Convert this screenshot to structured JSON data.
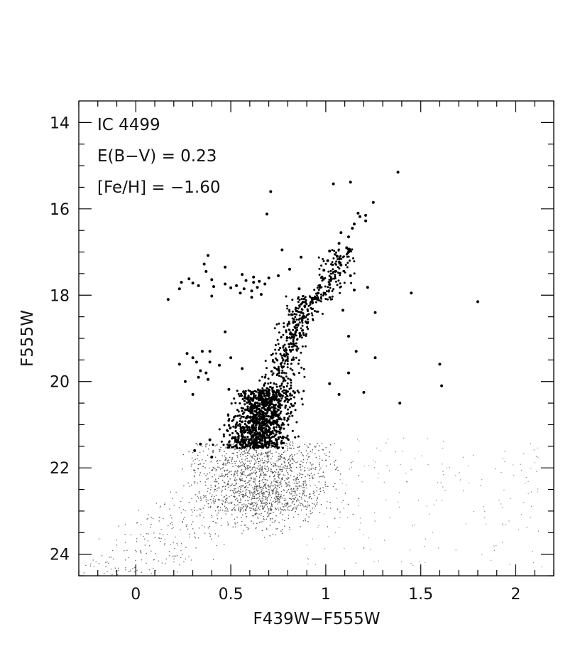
{
  "chart_data": {
    "type": "scatter",
    "title": "",
    "xlabel": "F439W−F555W",
    "ylabel": "F555W",
    "xlim": [
      -0.3,
      2.2
    ],
    "ylim": [
      24.5,
      13.5
    ],
    "y_inverted": true,
    "grid": false,
    "xticks": [
      0,
      0.5,
      1,
      1.5,
      2
    ],
    "xtick_labels": [
      "0",
      "0.5",
      "1",
      "1.5",
      "2"
    ],
    "yticks": [
      14,
      16,
      18,
      20,
      22,
      24
    ],
    "ytick_labels": [
      "14",
      "16",
      "18",
      "20",
      "22",
      "24"
    ],
    "annotations": [
      "IC 4499",
      "E(B−V) = 0.23",
      "[Fe/H] = −1.60"
    ],
    "series": [
      {
        "points": [
          [
            1.38,
            15.15
          ],
          [
            1.04,
            15.42
          ],
          [
            1.13,
            15.38
          ],
          [
            0.71,
            15.6
          ],
          [
            1.25,
            15.85
          ],
          [
            0.69,
            16.12
          ],
          [
            1.17,
            16.1
          ],
          [
            1.18,
            16.18
          ],
          [
            1.21,
            16.28
          ],
          [
            1.15,
            16.35
          ],
          [
            1.14,
            16.45
          ],
          [
            1.08,
            16.55
          ],
          [
            1.12,
            16.65
          ],
          [
            1.07,
            16.8
          ],
          [
            1.11,
            16.9
          ],
          [
            0.77,
            16.95
          ],
          [
            1.02,
            16.98
          ],
          [
            1.06,
            17.1
          ],
          [
            0.38,
            17.08
          ],
          [
            0.87,
            17.12
          ],
          [
            1.01,
            17.2
          ],
          [
            0.36,
            17.28
          ],
          [
            1.08,
            17.3
          ],
          [
            0.47,
            17.35
          ],
          [
            0.99,
            17.42
          ],
          [
            0.37,
            17.45
          ],
          [
            0.81,
            17.4
          ],
          [
            1.05,
            17.45
          ],
          [
            0.56,
            17.52
          ],
          [
            0.62,
            17.58
          ],
          [
            0.75,
            17.55
          ],
          [
            0.98,
            17.58
          ],
          [
            0.28,
            17.62
          ],
          [
            0.4,
            17.64
          ],
          [
            0.58,
            17.66
          ],
          [
            0.65,
            17.68
          ],
          [
            0.7,
            17.6
          ],
          [
            0.24,
            17.7
          ],
          [
            0.3,
            17.72
          ],
          [
            0.47,
            17.74
          ],
          [
            0.53,
            17.78
          ],
          [
            0.62,
            17.7
          ],
          [
            0.68,
            17.74
          ],
          [
            0.33,
            17.78
          ],
          [
            0.41,
            17.8
          ],
          [
            0.5,
            17.83
          ],
          [
            0.57,
            17.85
          ],
          [
            0.64,
            17.82
          ],
          [
            1.02,
            17.75
          ],
          [
            0.23,
            17.85
          ],
          [
            0.61,
            17.9
          ],
          [
            0.86,
            17.85
          ],
          [
            0.97,
            17.82
          ],
          [
            1.22,
            17.82
          ],
          [
            1.15,
            17.88
          ],
          [
            0.55,
            17.95
          ],
          [
            0.66,
            17.98
          ],
          [
            0.96,
            17.95
          ],
          [
            1.45,
            17.95
          ],
          [
            0.4,
            18.02
          ],
          [
            0.61,
            18.05
          ],
          [
            0.93,
            18.1
          ],
          [
            0.17,
            18.1
          ],
          [
            1.8,
            18.15
          ],
          [
            0.89,
            18.25
          ],
          [
            1.26,
            18.4
          ],
          [
            0.87,
            18.4
          ],
          [
            0.82,
            18.45
          ],
          [
            0.47,
            18.85
          ],
          [
            0.27,
            19.35
          ],
          [
            0.35,
            19.3
          ],
          [
            0.39,
            19.3
          ],
          [
            0.3,
            19.45
          ],
          [
            0.5,
            19.45
          ],
          [
            0.32,
            19.55
          ],
          [
            0.39,
            19.55
          ],
          [
            0.23,
            19.6
          ],
          [
            0.44,
            19.62
          ],
          [
            0.34,
            19.75
          ],
          [
            0.37,
            19.8
          ],
          [
            0.33,
            19.9
          ],
          [
            0.38,
            19.95
          ],
          [
            0.26,
            20.0
          ],
          [
            0.3,
            20.3
          ],
          [
            0.49,
            20.18
          ],
          [
            1.2,
            20.25
          ],
          [
            0.56,
            19.7
          ],
          [
            1.12,
            19.8
          ],
          [
            1.6,
            19.6
          ],
          [
            1.61,
            20.1
          ],
          [
            1.39,
            20.5
          ],
          [
            1.26,
            19.45
          ],
          [
            1.12,
            18.95
          ],
          [
            0.34,
            21.45
          ],
          [
            0.39,
            21.35
          ],
          [
            0.31,
            21.6
          ],
          [
            0.4,
            21.75
          ],
          [
            1.07,
            20.3
          ],
          [
            1.02,
            20.05
          ],
          [
            1.16,
            19.3
          ],
          [
            1.13,
            17.55
          ],
          [
            1.09,
            18.35
          ],
          [
            1.12,
            17.0
          ],
          [
            1.21,
            16.15
          ],
          [
            1.03,
            17.62
          ]
        ]
      }
    ]
  }
}
